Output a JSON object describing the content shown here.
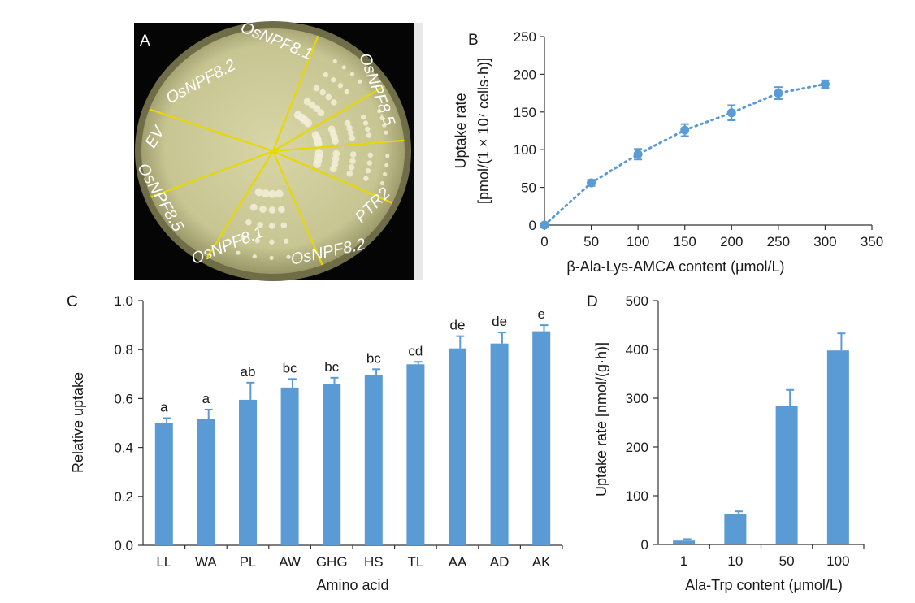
{
  "panel_labels": {
    "a": "A",
    "b": "B",
    "c": "C",
    "d": "D"
  },
  "plate": {
    "labels": [
      "OsNPF8.2",
      "OsNPF8.1",
      "OsNPF8.5",
      "EV",
      "PTR2",
      "OsNPF8.5",
      "OsNPF8.1",
      "OsNPF8.2"
    ],
    "line_color": "#e6d800",
    "agar_color": "#cfcd9a"
  },
  "colors": {
    "bar": "#5b9bd5",
    "line": "#5b9bd5",
    "axis": "#333333"
  },
  "chart_data": [
    {
      "panel": "B",
      "type": "scatter",
      "xlabel": "β-Ala-Lys-AMCA content (μmol/L)",
      "ylabel_line1": "Uptake rate",
      "ylabel_line2": "[pmol/(1 × 10⁷ cells·h)]",
      "x": [
        0,
        50,
        100,
        150,
        200,
        250,
        300
      ],
      "y": [
        0,
        56,
        94,
        126,
        149,
        175,
        187
      ],
      "error": [
        2,
        4,
        7,
        8,
        10,
        8,
        5
      ],
      "xlim": [
        0,
        350
      ],
      "ylim": [
        0,
        250
      ],
      "xticks": [
        0,
        50,
        100,
        150,
        200,
        250,
        300,
        350
      ],
      "yticks": [
        0,
        50,
        100,
        150,
        200,
        250
      ],
      "trendline": "dotted",
      "grid": false
    },
    {
      "panel": "C",
      "type": "bar",
      "xlabel": "Amino acid",
      "ylabel": "Relative uptake",
      "categories": [
        "LL",
        "WA",
        "PL",
        "AW",
        "GHG",
        "HS",
        "TL",
        "AA",
        "AD",
        "AK"
      ],
      "values": [
        0.5,
        0.515,
        0.595,
        0.645,
        0.66,
        0.695,
        0.74,
        0.805,
        0.825,
        0.875
      ],
      "error": [
        0.02,
        0.04,
        0.07,
        0.035,
        0.025,
        0.025,
        0.01,
        0.05,
        0.045,
        0.025
      ],
      "letters": [
        "a",
        "a",
        "ab",
        "bc",
        "bc",
        "bc",
        "cd",
        "de",
        "de",
        "e"
      ],
      "ylim": [
        0,
        1.0
      ],
      "yticks": [
        "0.0",
        "0.2",
        "0.4",
        "0.6",
        "0.8",
        "1.0"
      ],
      "grid": false
    },
    {
      "panel": "D",
      "type": "bar",
      "xlabel": "Ala-Trp content (μmol/L)",
      "ylabel": "Uptake rate [nmol/(g·h)]",
      "categories": [
        "1",
        "10",
        "50",
        "100"
      ],
      "values": [
        8,
        62,
        285,
        398
      ],
      "error": [
        3,
        6,
        32,
        35
      ],
      "ylim": [
        0,
        500
      ],
      "yticks": [
        0,
        100,
        200,
        300,
        400,
        500
      ],
      "grid": false
    }
  ]
}
